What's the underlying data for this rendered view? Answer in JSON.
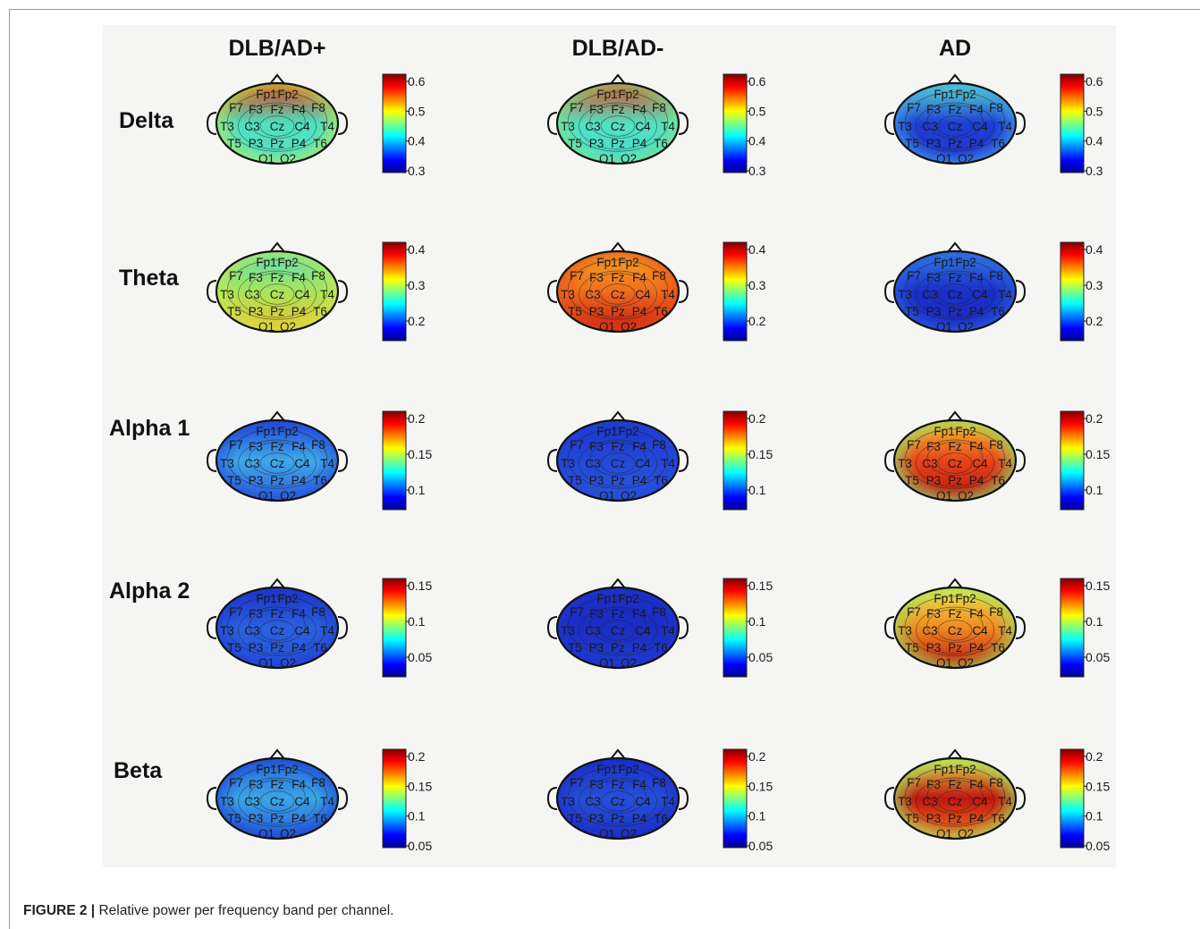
{
  "figure": {
    "column_headers": [
      "DLB/AD+",
      "DLB/AD-",
      "AD"
    ],
    "rows": [
      {
        "band": "Delta",
        "ticks": [
          "0.6",
          "0.5",
          "0.4",
          "0.3"
        ],
        "maps": [
          {
            "group": "DLB/AD+",
            "frontal": "#e03a10",
            "central": "#4fe0c0",
            "posterior": "#55e3c3",
            "edge": "#b9e85a"
          },
          {
            "group": "DLB/AD-",
            "frontal": "#e0461a",
            "central": "#52e1c2",
            "posterior": "#48dcd0",
            "edge": "#7de38a"
          },
          {
            "group": "AD",
            "frontal": "#58e2c8",
            "central": "#1e3dd6",
            "posterior": "#2336d0",
            "edge": "#3fa2e8"
          }
        ],
        "electrodes": [
          "Fp1",
          "Fp2",
          "F7",
          "F3",
          "Fz",
          "F4",
          "F8",
          "T3",
          "C3",
          "Cz",
          "C4",
          "T4",
          "T5",
          "P3",
          "Pz",
          "P4",
          "T6",
          "O1",
          "O2"
        ]
      },
      {
        "band": "Theta",
        "ticks": [
          "0.4",
          "0.3",
          "0.2"
        ],
        "maps": [
          {
            "group": "DLB/AD+",
            "frontal": "#59dfb9",
            "central": "#a9e55a",
            "posterior": "#f2c12a",
            "edge": "#c7e850"
          },
          {
            "group": "DLB/AD-",
            "frontal": "#f4a521",
            "central": "#f06d1c",
            "posterior": "#c41611",
            "edge": "#e84e16"
          },
          {
            "group": "AD",
            "frontal": "#2f7be6",
            "central": "#1a2fc9",
            "posterior": "#1c2bc4",
            "edge": "#2a63de"
          }
        ]
      },
      {
        "band": "Alpha 1",
        "ticks": [
          "0.2",
          "0.15",
          "0.1"
        ],
        "maps": [
          {
            "group": "DLB/AD+",
            "frontal": "#1f46d8",
            "central": "#3fa8ea",
            "posterior": "#2c5fdf",
            "edge": "#2350d9"
          },
          {
            "group": "DLB/AD-",
            "frontal": "#1a33cf",
            "central": "#2248d8",
            "posterior": "#2a57dc",
            "edge": "#2144d5"
          },
          {
            "group": "AD",
            "frontal": "#f2c22a",
            "central": "#e8441a",
            "posterior": "#b8160f",
            "edge": "#8fe36d"
          }
        ]
      },
      {
        "band": "Alpha 2",
        "ticks": [
          "0.15",
          "0.1",
          "0.05"
        ],
        "maps": [
          {
            "group": "DLB/AD+",
            "frontal": "#1b2fc8",
            "central": "#2a61df",
            "posterior": "#2450d9",
            "edge": "#1f3ed2"
          },
          {
            "group": "DLB/AD-",
            "frontal": "#1a2ec8",
            "central": "#1b2dc6",
            "posterior": "#1f3dd1",
            "edge": "#1c34cd"
          },
          {
            "group": "AD",
            "frontal": "#e9e64a",
            "central": "#f08a22",
            "posterior": "#bd150f",
            "edge": "#9fe35a"
          }
        ]
      },
      {
        "band": "Beta",
        "ticks": [
          "0.2",
          "0.15",
          "0.1",
          "0.05"
        ],
        "maps": [
          {
            "group": "DLB/AD+",
            "frontal": "#2566dc",
            "central": "#3aa5e6",
            "posterior": "#2459da",
            "edge": "#1e44d3"
          },
          {
            "group": "DLB/AD-",
            "frontal": "#1b31cb",
            "central": "#2450d8",
            "posterior": "#1c30c9",
            "edge": "#1a2ec6"
          },
          {
            "group": "AD",
            "frontal": "#d8e34a",
            "central": "#c2150f",
            "posterior": "#f07a1d",
            "edge": "#9fe35f"
          }
        ]
      }
    ]
  },
  "caption": {
    "label": "FIGURE 2 |",
    "text": "Relative power per frequency band per channel."
  }
}
